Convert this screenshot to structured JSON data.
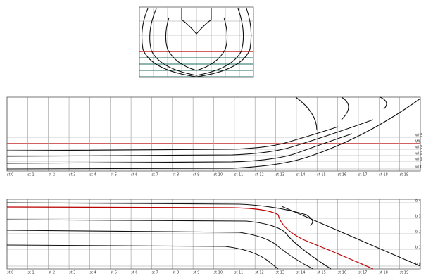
{
  "profile": {
    "stations": [
      "st 0",
      "st 1",
      "st 2",
      "st 3",
      "st 4",
      "st 5",
      "st 6",
      "st 7",
      "st 8",
      "st 9",
      "st 10",
      "st 11",
      "st 12",
      "st 13",
      "st 14",
      "st 15",
      "st 16",
      "st 17",
      "st 18",
      "st 19"
    ],
    "waterlines": [
      "wl 5",
      "WL",
      "wl 3",
      "wl 2",
      "wl 1",
      "wl 0"
    ]
  },
  "plan": {
    "stations": [
      "st 0",
      "st 1",
      "st 2",
      "st 3",
      "st 4",
      "st 5",
      "st 6",
      "st 7",
      "st 8",
      "st 9",
      "st 10",
      "st 11",
      "st 12",
      "st 13",
      "st 14",
      "st 15",
      "st 16",
      "st 17",
      "st 18",
      "st 19"
    ],
    "buttocks": [
      "b 4",
      "b 3",
      "b 2",
      "b 1",
      "b 0"
    ]
  }
}
